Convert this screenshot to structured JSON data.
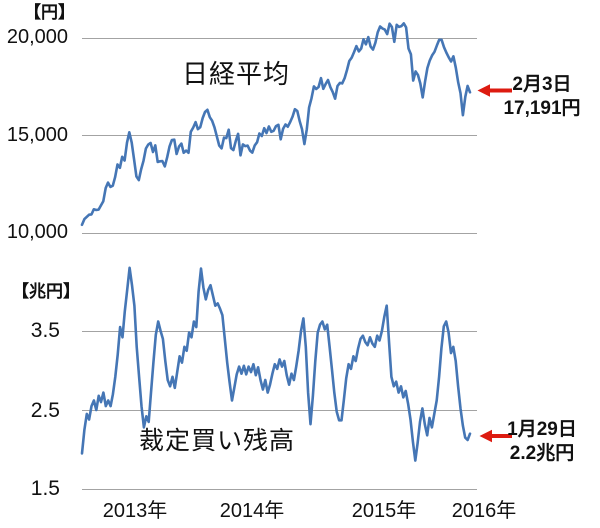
{
  "page": {
    "background": "#ffffff",
    "text_color": "#111111"
  },
  "chart_data": [
    {
      "type": "line",
      "title": "日経平均",
      "unit_label": "【円】",
      "ylim": [
        9500,
        21200
      ],
      "grid": true,
      "legend_position": "none",
      "yticks": [
        {
          "value": 20000,
          "label": "20,000"
        },
        {
          "value": 15000,
          "label": "15,000"
        },
        {
          "value": 10000,
          "label": "10,000"
        }
      ],
      "x_range_note": "2012年末～2016年2月3日",
      "annotation": {
        "line1": "2月3日",
        "line2": "17,191円",
        "arrow_color": "#dd1b10"
      },
      "series": [
        {
          "name": "日経平均",
          "color": "#4576b5",
          "values": [
            10395,
            10688,
            10802,
            10913,
            10927,
            11191,
            11154,
            11173,
            11386,
            11606,
            12284,
            12561,
            12338,
            12398,
            12834,
            13485,
            13316,
            13884,
            13694,
            14607,
            15138,
            14612,
            13775,
            12878,
            12686,
            13230,
            13677,
            14310,
            14506,
            14590,
            14130,
            14466,
            13615,
            13650,
            13660,
            13389,
            13860,
            14404,
            14742,
            14760,
            14024,
            14404,
            14561,
            14088,
            14202,
            14086,
            15165,
            15382,
            15661,
            15300,
            15403,
            15870,
            16178,
            16291,
            15912,
            15734,
            15391,
            14914,
            14462,
            14313,
            14865,
            14841,
            15274,
            14327,
            14224,
            14696,
            15064,
            13960,
            14516,
            14429,
            14457,
            14199,
            14097,
            14462,
            14632,
            15077,
            14950,
            15349,
            15095,
            15437,
            15164,
            15215,
            15457,
            15523,
            14778,
            15318,
            15539,
            15424,
            15668,
            15948,
            16321,
            16230,
            15709,
            15300,
            14532,
            15292,
            16413,
            16880,
            17491,
            17358,
            17459,
            17920,
            17371,
            17621,
            17819,
            17450,
            17197,
            16864,
            17511,
            17674,
            17648,
            17913,
            18332,
            18797,
            18971,
            19254,
            19560,
            19286,
            19435,
            19907,
            19652,
            20020,
            19531,
            19379,
            19732,
            20264,
            20563,
            20461,
            20407,
            20174,
            20706,
            20540,
            19780,
            20651,
            20545,
            20585,
            20725,
            20519,
            19435,
            19136,
            17792,
            18264,
            18070,
            17645,
            16930,
            17725,
            18438,
            18825,
            19083,
            19265,
            19596,
            19880,
            19884,
            19504,
            19230,
            18987,
            18769,
            19034,
            18450,
            17698,
            17147,
            16017,
            16958,
            17518,
            17191
          ]
        }
      ]
    },
    {
      "type": "line",
      "title": "裁定買い残高",
      "unit_label": "【兆円】",
      "ylim": [
        1.5,
        4.5
      ],
      "grid": true,
      "legend_position": "none",
      "yticks": [
        {
          "value": 3.5,
          "label": "3.5"
        },
        {
          "value": 2.5,
          "label": "2.5"
        },
        {
          "value": 1.5,
          "label": "1.5"
        }
      ],
      "xticklabels": [
        "2013年",
        "2014年",
        "2015年",
        "2016年"
      ],
      "annotation": {
        "line1": "1月29日",
        "line2": "2.2兆円",
        "arrow_color": "#dd1b10"
      },
      "series": [
        {
          "name": "裁定買い残高",
          "color": "#4576b5",
          "values": [
            1.95,
            2.25,
            2.45,
            2.38,
            2.55,
            2.62,
            2.5,
            2.68,
            2.6,
            2.72,
            2.55,
            2.62,
            2.55,
            2.7,
            2.92,
            3.2,
            3.55,
            3.42,
            3.75,
            4.02,
            4.3,
            4.08,
            3.82,
            3.3,
            2.92,
            2.55,
            2.28,
            2.42,
            2.35,
            2.72,
            3.1,
            3.45,
            3.62,
            3.5,
            3.4,
            3.12,
            2.88,
            2.8,
            2.92,
            2.78,
            2.98,
            3.18,
            3.1,
            3.3,
            3.25,
            3.48,
            3.42,
            3.62,
            3.55,
            4.0,
            4.29,
            4.05,
            3.9,
            4.02,
            4.08,
            3.95,
            3.82,
            3.85,
            3.78,
            3.7,
            3.4,
            3.1,
            2.85,
            2.62,
            2.78,
            2.95,
            3.05,
            2.96,
            3.06,
            2.95,
            3.05,
            2.98,
            3.08,
            2.94,
            3.04,
            2.88,
            2.76,
            2.88,
            2.72,
            2.82,
            2.96,
            3.08,
            3.02,
            3.14,
            3.05,
            3.12,
            2.94,
            2.82,
            2.96,
            2.88,
            3.05,
            3.25,
            3.5,
            3.66,
            3.3,
            2.72,
            2.32,
            2.68,
            3.12,
            3.48,
            3.58,
            3.62,
            3.52,
            3.58,
            3.3,
            3.02,
            2.72,
            2.48,
            2.37,
            2.37,
            2.62,
            2.9,
            3.08,
            3.02,
            3.18,
            3.12,
            3.28,
            3.4,
            3.44,
            3.36,
            3.32,
            3.42,
            3.34,
            3.3,
            3.44,
            3.38,
            3.5,
            3.68,
            3.82,
            3.35,
            2.92,
            2.8,
            2.86,
            2.72,
            2.8,
            2.66,
            2.74,
            2.58,
            2.38,
            2.1,
            1.86,
            2.08,
            2.35,
            2.52,
            2.32,
            2.18,
            2.4,
            2.28,
            2.45,
            2.62,
            2.92,
            3.28,
            3.56,
            3.62,
            3.48,
            3.22,
            3.3,
            3.12,
            2.8,
            2.52,
            2.3,
            2.15,
            2.12,
            2.2
          ]
        }
      ]
    }
  ]
}
